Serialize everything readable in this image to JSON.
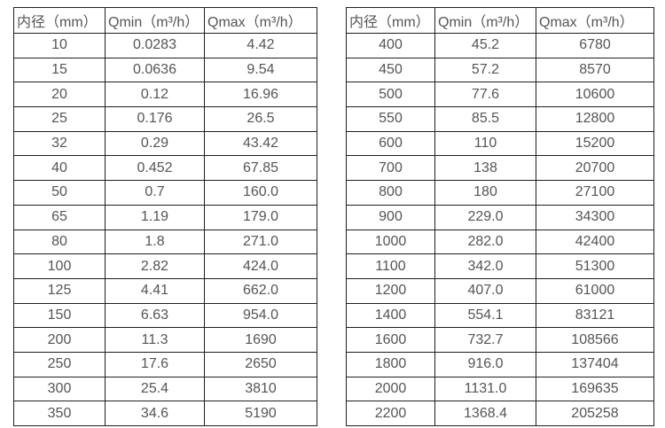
{
  "colors": {
    "background": "#ffffff",
    "border": "#1f1f1f",
    "text": "#555555"
  },
  "table_left": {
    "headers": [
      "内径（mm）",
      "Qmin（m³/h）",
      "Qmax（m³/h）"
    ],
    "rows": [
      [
        "10",
        "0.0283",
        "4.42"
      ],
      [
        "15",
        "0.0636",
        "9.54"
      ],
      [
        "20",
        "0.12",
        "16.96"
      ],
      [
        "25",
        "0.176",
        "26.5"
      ],
      [
        "32",
        "0.29",
        "43.42"
      ],
      [
        "40",
        "0.452",
        "67.85"
      ],
      [
        "50",
        "0.7",
        "160.0"
      ],
      [
        "65",
        "1.19",
        "179.0"
      ],
      [
        "80",
        "1.8",
        "271.0"
      ],
      [
        "100",
        "2.82",
        "424.0"
      ],
      [
        "125",
        "4.41",
        "662.0"
      ],
      [
        "150",
        "6.63",
        "954.0"
      ],
      [
        "200",
        "11.3",
        "1690"
      ],
      [
        "250",
        "17.6",
        "2650"
      ],
      [
        "300",
        "25.4",
        "3810"
      ],
      [
        "350",
        "34.6",
        "5190"
      ]
    ]
  },
  "table_right": {
    "headers": [
      "内径（mm）",
      "Qmin（m³/h）",
      "Qmax（m³/h）"
    ],
    "rows": [
      [
        "400",
        "45.2",
        "6780"
      ],
      [
        "450",
        "57.2",
        "8570"
      ],
      [
        "500",
        "77.6",
        "10600"
      ],
      [
        "550",
        "85.5",
        "12800"
      ],
      [
        "600",
        "110",
        "15200"
      ],
      [
        "700",
        "138",
        "20700"
      ],
      [
        "800",
        "180",
        "27100"
      ],
      [
        "900",
        "229.0",
        "34300"
      ],
      [
        "1000",
        "282.0",
        "42400"
      ],
      [
        "1100",
        "342.0",
        "51300"
      ],
      [
        "1200",
        "407.0",
        "61000"
      ],
      [
        "1400",
        "554.1",
        "83121"
      ],
      [
        "1600",
        "732.7",
        "108566"
      ],
      [
        "1800",
        "916.0",
        "137404"
      ],
      [
        "2000",
        "1131.0",
        "169635"
      ],
      [
        "2200",
        "1368.4",
        "205258"
      ]
    ]
  }
}
